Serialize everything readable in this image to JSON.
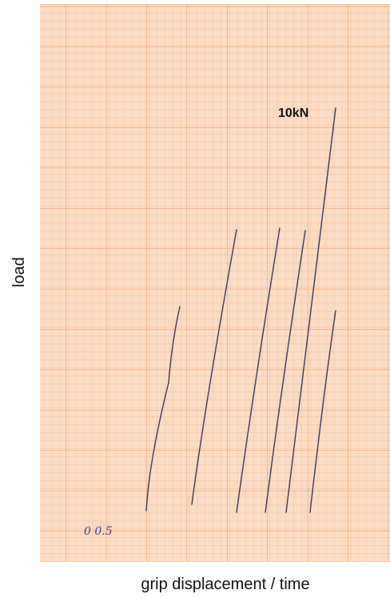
{
  "axes": {
    "y_label": "load",
    "x_label": "grip displacement / time"
  },
  "paper": {
    "annotation": "10kN",
    "note": "0 0.5"
  }
}
